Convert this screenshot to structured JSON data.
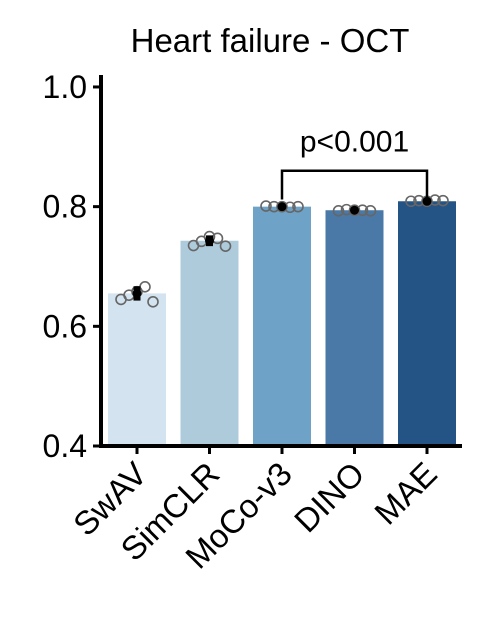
{
  "chart_data": {
    "type": "bar",
    "title": "Heart failure - OCT",
    "xlabel": "",
    "ylabel": "",
    "ylim": [
      0.4,
      1.02
    ],
    "yticks": [
      "0.4",
      "0.6",
      "0.8",
      "1.0"
    ],
    "grid": false,
    "legend": "none",
    "categories": [
      "SwAV",
      "SimCLR",
      "MoCo-v3",
      "DINO",
      "MAE"
    ],
    "values": [
      0.655,
      0.743,
      0.8,
      0.794,
      0.809
    ],
    "error": [
      0.012,
      0.009,
      0.004,
      0.004,
      0.003
    ],
    "points": [
      [
        0.645,
        0.652,
        0.658,
        0.666,
        0.641
      ],
      [
        0.735,
        0.742,
        0.75,
        0.747,
        0.734
      ],
      [
        0.801,
        0.8,
        0.8,
        0.799,
        0.8
      ],
      [
        0.793,
        0.795,
        0.794,
        0.794,
        0.793
      ],
      [
        0.809,
        0.81,
        0.809,
        0.811,
        0.81
      ]
    ],
    "colors": [
      "#d3e3f0",
      "#aecbdc",
      "#6ea2c6",
      "#4a79a7",
      "#245385"
    ],
    "annotations": [
      {
        "text": "p<0.001",
        "from": "MoCo-v3",
        "to": "MAE",
        "y": 0.86
      }
    ]
  }
}
